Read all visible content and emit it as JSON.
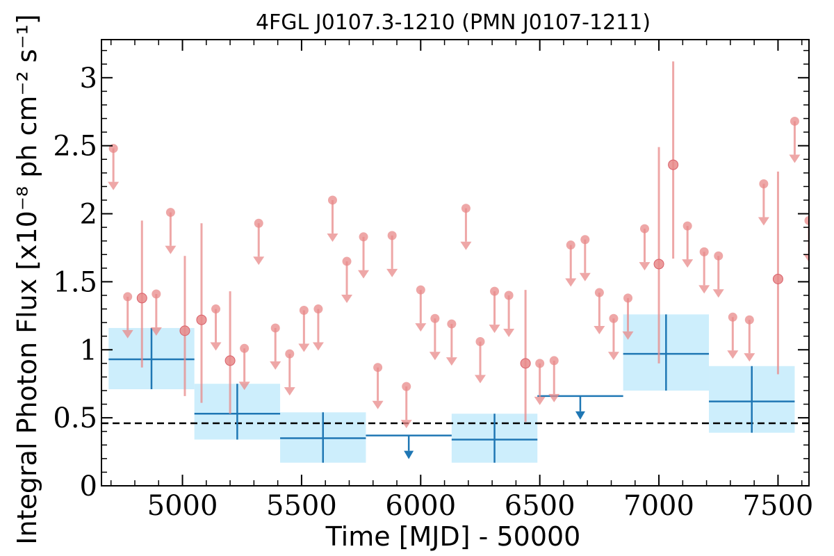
{
  "chart_data": {
    "type": "scatter",
    "title": "4FGL J0107.3-1210 (PMN J0107-1211)",
    "xlabel": "Time [MJD] - 50000",
    "ylabel": "Integral Photon Flux [x10⁻⁸ ph cm⁻² s⁻¹]",
    "xlim": [
      4660,
      7630
    ],
    "ylim": [
      0,
      3.28
    ],
    "x_ticks": [
      5000,
      5500,
      6000,
      6500,
      7000,
      7500
    ],
    "y_ticks": [
      0,
      0.5,
      1,
      1.5,
      2,
      2.5,
      3
    ],
    "y_tick_labels": [
      "0",
      "0.5",
      "1",
      "1.5",
      "2",
      "2.5",
      "3"
    ],
    "reference_level": 0.46,
    "colors": {
      "short_bins": "#e88a8a",
      "long_bins": "#1f77b4",
      "long_bin_band": "#cdeefc",
      "reference_line": "#000000"
    },
    "series": [
      {
        "role": "short-bin fluxes (red)",
        "points": [
          {
            "x": 4710,
            "y": 2.48,
            "ul": true
          },
          {
            "x": 4770,
            "y": 1.39,
            "ul": true
          },
          {
            "x": 4830,
            "y": 1.38,
            "lo": 0.87,
            "hi": 1.95
          },
          {
            "x": 4890,
            "y": 1.41,
            "ul": true
          },
          {
            "x": 4950,
            "y": 2.01,
            "ul": true
          },
          {
            "x": 5010,
            "y": 1.14,
            "lo": 0.66,
            "hi": 1.69
          },
          {
            "x": 5080,
            "y": 1.22,
            "lo": 0.61,
            "hi": 1.93
          },
          {
            "x": 5140,
            "y": 1.3,
            "ul": true
          },
          {
            "x": 5200,
            "y": 0.92,
            "lo": 0.53,
            "hi": 1.43
          },
          {
            "x": 5260,
            "y": 1.01,
            "ul": true
          },
          {
            "x": 5320,
            "y": 1.93,
            "ul": true
          },
          {
            "x": 5390,
            "y": 1.16,
            "ul": true
          },
          {
            "x": 5450,
            "y": 0.97,
            "ul": true
          },
          {
            "x": 5510,
            "y": 1.29,
            "ul": true
          },
          {
            "x": 5570,
            "y": 1.3,
            "ul": true
          },
          {
            "x": 5630,
            "y": 2.1,
            "ul": true
          },
          {
            "x": 5690,
            "y": 1.65,
            "ul": true
          },
          {
            "x": 5760,
            "y": 1.83,
            "ul": true
          },
          {
            "x": 5820,
            "y": 0.87,
            "ul": true
          },
          {
            "x": 5880,
            "y": 1.84,
            "ul": true
          },
          {
            "x": 5940,
            "y": 0.73,
            "ul": true
          },
          {
            "x": 6000,
            "y": 1.44,
            "ul": true
          },
          {
            "x": 6060,
            "y": 1.23,
            "ul": true
          },
          {
            "x": 6130,
            "y": 1.19,
            "ul": true
          },
          {
            "x": 6190,
            "y": 2.04,
            "ul": true
          },
          {
            "x": 6250,
            "y": 1.06,
            "ul": true
          },
          {
            "x": 6310,
            "y": 1.43,
            "ul": true
          },
          {
            "x": 6370,
            "y": 1.4,
            "ul": true
          },
          {
            "x": 6440,
            "y": 0.9,
            "lo": 0.47,
            "hi": 1.44
          },
          {
            "x": 6500,
            "y": 0.9,
            "ul": true
          },
          {
            "x": 6560,
            "y": 0.92,
            "ul": true
          },
          {
            "x": 6630,
            "y": 1.77,
            "ul": true
          },
          {
            "x": 6690,
            "y": 1.81,
            "ul": true
          },
          {
            "x": 6750,
            "y": 1.42,
            "ul": true
          },
          {
            "x": 6810,
            "y": 1.23,
            "ul": true
          },
          {
            "x": 6870,
            "y": 1.38,
            "ul": true
          },
          {
            "x": 6940,
            "y": 1.89,
            "ul": true
          },
          {
            "x": 7000,
            "y": 1.63,
            "lo": 0.9,
            "hi": 2.49
          },
          {
            "x": 7060,
            "y": 2.36,
            "lo": 1.67,
            "hi": 3.12
          },
          {
            "x": 7120,
            "y": 1.91,
            "ul": true
          },
          {
            "x": 7190,
            "y": 1.72,
            "ul": true
          },
          {
            "x": 7250,
            "y": 1.69,
            "ul": true
          },
          {
            "x": 7310,
            "y": 1.24,
            "ul": true
          },
          {
            "x": 7380,
            "y": 1.22,
            "ul": true
          },
          {
            "x": 7440,
            "y": 2.22,
            "ul": true
          },
          {
            "x": 7500,
            "y": 1.52,
            "lo": 0.82,
            "hi": 2.31
          },
          {
            "x": 7570,
            "y": 2.68,
            "ul": true
          },
          {
            "x": 7630,
            "y": 1.95,
            "ul": true
          }
        ]
      },
      {
        "role": "long-bin fluxes (blue)",
        "points": [
          {
            "x0": 4690,
            "x1": 5050,
            "y": 0.93,
            "lo": 0.71,
            "hi": 1.16,
            "ul": false
          },
          {
            "x0": 5050,
            "x1": 5410,
            "y": 0.53,
            "lo": 0.34,
            "hi": 0.75,
            "ul": false
          },
          {
            "x0": 5410,
            "x1": 5770,
            "y": 0.35,
            "lo": 0.17,
            "hi": 0.54,
            "ul": false
          },
          {
            "x0": 5770,
            "x1": 6130,
            "y": 0.37,
            "ul": true
          },
          {
            "x0": 6130,
            "x1": 6490,
            "y": 0.34,
            "lo": 0.17,
            "hi": 0.53,
            "ul": false
          },
          {
            "x0": 6490,
            "x1": 6850,
            "y": 0.66,
            "ul": true
          },
          {
            "x0": 6850,
            "x1": 7210,
            "y": 0.97,
            "lo": 0.7,
            "hi": 1.26,
            "ul": false
          },
          {
            "x0": 7210,
            "x1": 7570,
            "y": 0.62,
            "lo": 0.39,
            "hi": 0.88,
            "ul": false
          }
        ]
      }
    ]
  }
}
